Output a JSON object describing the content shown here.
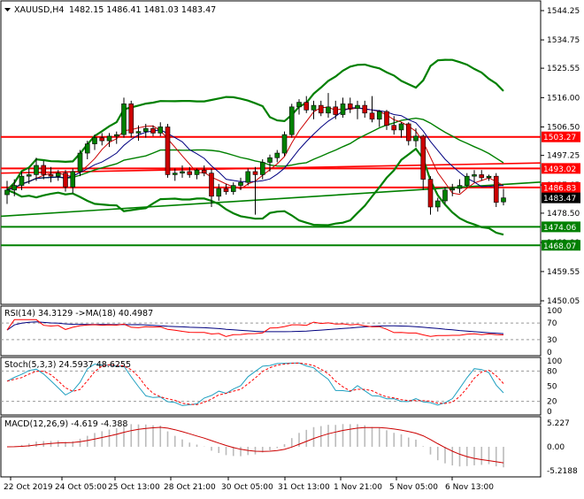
{
  "header": {
    "symbol": "XAUUSD,H4",
    "ohlc": "1482.15 1486.41 1481.03 1483.47"
  },
  "price_axis": {
    "ticks": [
      "1544.25",
      "1534.75",
      "1525.55",
      "1516.00",
      "1506.50",
      "1497.25",
      "1487.65",
      "1478.50",
      "1469.00",
      "1459.55",
      "1450.05"
    ]
  },
  "levels": [
    {
      "value": "1503.27",
      "color": "#ff0000"
    },
    {
      "value": "1493.02",
      "color": "#ff0000"
    },
    {
      "value": "1486.83",
      "color": "#ff0000"
    },
    {
      "value": "1483.47",
      "color": "#000000"
    },
    {
      "value": "1474.06",
      "color": "#008000"
    },
    {
      "value": "1468.07",
      "color": "#008000"
    }
  ],
  "rsi": {
    "header": "RSI(14) 34.3129 ->MA(18) 40.4987",
    "ticks": [
      "100",
      "70",
      "30",
      "0"
    ]
  },
  "stoch": {
    "header": "Stoch(5,3,3) 24.5937 48.6255",
    "ticks": [
      "100",
      "80",
      "50",
      "20",
      "0"
    ]
  },
  "macd": {
    "header": "MACD(12,26,9) -4.619 -4.388",
    "ticks": [
      "5.227",
      "0.00",
      "-5.2188"
    ]
  },
  "time_axis": [
    "22 Oct 2019",
    "24 Oct 05:00",
    "25 Oct 13:00",
    "28 Oct 21:00",
    "30 Oct 05:00",
    "31 Oct 13:00",
    "1 Nov 21:00",
    "5 Nov 05:00",
    "6 Nov 13:00"
  ],
  "chart_data": {
    "type": "candlestick",
    "ylim": [
      1450.05,
      1549
    ],
    "candles": [
      [
        1484.5,
        1489.0,
        1481.5,
        1486.0
      ],
      [
        1486.0,
        1489.5,
        1484.0,
        1487.5
      ],
      [
        1487.5,
        1492.0,
        1486.0,
        1490.5
      ],
      [
        1490.5,
        1493.0,
        1488.0,
        1491.0
      ],
      [
        1491.0,
        1496.5,
        1489.0,
        1494.0
      ],
      [
        1494.0,
        1495.5,
        1489.5,
        1491.0
      ],
      [
        1491.0,
        1493.5,
        1488.5,
        1490.5
      ],
      [
        1490.5,
        1492.5,
        1489.0,
        1491.5
      ],
      [
        1491.5,
        1492.5,
        1485.5,
        1487.0
      ],
      [
        1487.0,
        1493.0,
        1485.0,
        1492.0
      ],
      [
        1492.0,
        1499.0,
        1490.5,
        1498.0
      ],
      [
        1498.0,
        1502.0,
        1496.0,
        1501.0
      ],
      [
        1501.0,
        1504.0,
        1499.0,
        1503.0
      ],
      [
        1503.0,
        1504.5,
        1500.5,
        1502.0
      ],
      [
        1502.0,
        1504.5,
        1500.0,
        1503.5
      ],
      [
        1503.5,
        1505.0,
        1501.0,
        1504.0
      ],
      [
        1504.0,
        1516.0,
        1503.0,
        1514.0
      ],
      [
        1514.0,
        1515.0,
        1503.0,
        1504.5
      ],
      [
        1504.5,
        1507.0,
        1502.0,
        1505.0
      ],
      [
        1505.0,
        1507.5,
        1503.0,
        1506.0
      ],
      [
        1506.0,
        1507.0,
        1503.5,
        1504.5
      ],
      [
        1504.5,
        1508.0,
        1503.5,
        1506.5
      ],
      [
        1506.5,
        1507.5,
        1490.0,
        1491.0
      ],
      [
        1491.0,
        1493.0,
        1489.0,
        1491.5
      ],
      [
        1491.5,
        1494.0,
        1490.0,
        1492.0
      ],
      [
        1492.0,
        1493.5,
        1490.0,
        1491.0
      ],
      [
        1491.0,
        1493.0,
        1489.5,
        1492.5
      ],
      [
        1492.5,
        1494.0,
        1490.5,
        1491.5
      ],
      [
        1491.5,
        1493.0,
        1480.5,
        1484.0
      ],
      [
        1484.0,
        1488.0,
        1482.5,
        1486.5
      ],
      [
        1486.5,
        1488.0,
        1484.5,
        1485.5
      ],
      [
        1485.5,
        1488.5,
        1484.5,
        1487.5
      ],
      [
        1487.5,
        1490.0,
        1486.0,
        1488.5
      ],
      [
        1488.5,
        1493.0,
        1487.5,
        1492.0
      ],
      [
        1492.0,
        1493.5,
        1478.0,
        1491.0
      ],
      [
        1491.0,
        1496.0,
        1489.5,
        1495.0
      ],
      [
        1495.0,
        1497.5,
        1492.0,
        1496.5
      ],
      [
        1496.5,
        1499.0,
        1495.0,
        1498.0
      ],
      [
        1498.0,
        1505.0,
        1497.0,
        1504.0
      ],
      [
        1504.0,
        1514.0,
        1503.0,
        1513.0
      ],
      [
        1513.0,
        1515.5,
        1510.5,
        1514.5
      ],
      [
        1514.5,
        1516.5,
        1511.0,
        1512.0
      ],
      [
        1512.0,
        1515.0,
        1509.0,
        1513.5
      ],
      [
        1513.5,
        1515.0,
        1510.0,
        1511.0
      ],
      [
        1511.0,
        1517.5,
        1509.5,
        1513.0
      ],
      [
        1513.0,
        1515.0,
        1509.0,
        1510.5
      ],
      [
        1510.5,
        1516.0,
        1509.5,
        1514.0
      ],
      [
        1514.0,
        1516.0,
        1511.0,
        1512.5
      ],
      [
        1512.5,
        1515.0,
        1509.0,
        1513.5
      ],
      [
        1513.5,
        1515.0,
        1509.5,
        1511.0
      ],
      [
        1511.0,
        1516.5,
        1508.0,
        1509.0
      ],
      [
        1509.0,
        1512.0,
        1506.5,
        1511.5
      ],
      [
        1511.5,
        1512.0,
        1505.5,
        1507.0
      ],
      [
        1507.0,
        1510.0,
        1504.0,
        1505.5
      ],
      [
        1505.5,
        1508.0,
        1503.0,
        1507.5
      ],
      [
        1507.5,
        1508.0,
        1500.5,
        1502.0
      ],
      [
        1502.0,
        1506.0,
        1500.0,
        1503.5
      ],
      [
        1503.5,
        1504.0,
        1486.0,
        1489.5
      ],
      [
        1489.5,
        1490.5,
        1478.0,
        1480.5
      ],
      [
        1480.5,
        1483.5,
        1479.0,
        1482.5
      ],
      [
        1482.5,
        1487.0,
        1481.5,
        1486.0
      ],
      [
        1486.0,
        1488.0,
        1484.0,
        1486.5
      ],
      [
        1486.5,
        1489.5,
        1485.0,
        1487.5
      ],
      [
        1487.5,
        1491.5,
        1487.0,
        1490.5
      ],
      [
        1490.5,
        1492.5,
        1488.5,
        1491.0
      ],
      [
        1491.0,
        1492.5,
        1489.0,
        1490.0
      ],
      [
        1490.0,
        1491.0,
        1489.0,
        1490.5
      ],
      [
        1490.5,
        1491.5,
        1480.5,
        1482.0
      ],
      [
        1482.15,
        1486.41,
        1481.03,
        1483.47
      ]
    ],
    "rsi": {
      "ylim": [
        0,
        100
      ],
      "rsi_start": 45,
      "ma_start": 55
    },
    "stoch": {
      "ylim": [
        0,
        100
      ]
    },
    "macd": {
      "ylim": [
        -5.2188,
        5.227
      ]
    }
  }
}
